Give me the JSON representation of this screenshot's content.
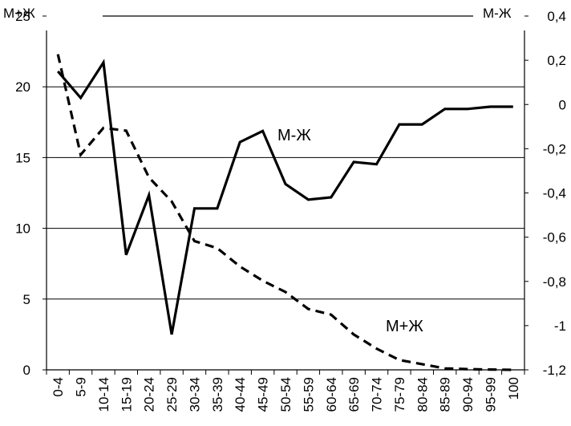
{
  "chart_data": {
    "type": "line",
    "categories": [
      "0-4",
      "5-9",
      "10-14",
      "15-19",
      "20-24",
      "25-29",
      "30-34",
      "35-39",
      "40-44",
      "45-49",
      "50-54",
      "55-59",
      "60-64",
      "65-69",
      "70-74",
      "75-79",
      "80-84",
      "85-89",
      "90-94",
      "95-99",
      "100"
    ],
    "left_axis": {
      "ylim": [
        0,
        25
      ],
      "ticks": [
        0,
        5,
        10,
        15,
        20,
        25
      ],
      "tick_labels": [
        "0",
        "5",
        "10",
        "15",
        "20",
        "25"
      ]
    },
    "right_axis": {
      "ylim": [
        -1.2,
        0.4
      ],
      "ticks": [
        -1.2,
        -1,
        -0.8,
        -0.6,
        -0.4,
        -0.2,
        0,
        0.2,
        0.4
      ],
      "tick_labels": [
        "-1,2",
        "-1",
        "-0,8",
        "-0,6",
        "-0,4",
        "-0,2",
        "0",
        "0,2",
        "0,4"
      ]
    },
    "grid": {
      "horizontal": true,
      "values": [
        5,
        10,
        15,
        20
      ]
    },
    "series": [
      {
        "name": "М+Ж",
        "axis": "left",
        "style": "dashed",
        "color": "#000000",
        "values": [
          22.3,
          15.2,
          17.1,
          16.9,
          13.6,
          11.9,
          9.1,
          8.6,
          7.3,
          6.3,
          5.5,
          4.3,
          3.9,
          2.5,
          1.5,
          0.7,
          0.4,
          0.1,
          0.05,
          0.02,
          0.0
        ]
      },
      {
        "name": "М-Ж",
        "axis": "right",
        "style": "solid",
        "color": "#000000",
        "values": [
          0.15,
          0.03,
          0.19,
          -0.68,
          -0.41,
          -1.04,
          -0.47,
          -0.47,
          -0.17,
          -0.12,
          -0.36,
          -0.43,
          -0.42,
          -0.26,
          -0.27,
          -0.09,
          -0.09,
          -0.02,
          -0.02,
          -0.01,
          -0.01
        ]
      }
    ],
    "legend": {
      "left_label": "М+Ж",
      "right_label": "М-Ж",
      "position": "top"
    },
    "annotations": [
      {
        "text": "М-Ж",
        "series": "М-Ж"
      },
      {
        "text": "М+Ж",
        "series": "М+Ж"
      }
    ]
  }
}
